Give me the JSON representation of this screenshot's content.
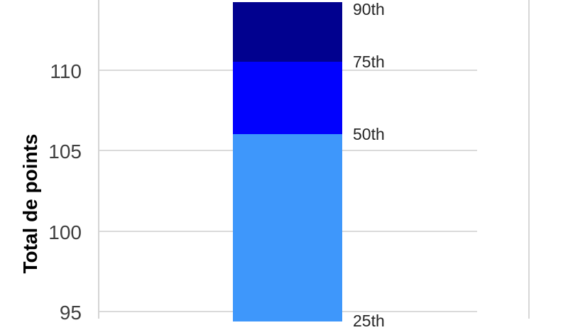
{
  "chart_data": {
    "type": "bar",
    "subtype": "stacked_percentile_column",
    "title": "",
    "xlabel": "",
    "ylabel": "Total de points",
    "yticks": [
      110,
      105,
      100,
      95
    ],
    "ylim_visible": [
      94.7,
      114.4
    ],
    "grid": true,
    "legend_position": "none",
    "percentiles": [
      {
        "label": "90th",
        "value": 114.2
      },
      {
        "label": "75th",
        "value": 110.5
      },
      {
        "label": "50th",
        "value": 106.0
      },
      {
        "label": "25th",
        "value": 94.4
      }
    ],
    "segments": [
      {
        "name": "p75-p90",
        "from": 114.2,
        "to": 110.5,
        "color": "#01018f"
      },
      {
        "name": "p50-p75",
        "from": 110.5,
        "to": 106.0,
        "color": "#0101fe"
      },
      {
        "name": "p25-p50",
        "from": 106.0,
        "to": 94.4,
        "color": "#3e97fb"
      }
    ],
    "colors": {
      "gridline": "#dadada",
      "axis_line": "#d4d4d4",
      "tick_text": "#404040",
      "percentile_text": "#262626",
      "axis_title_text": "#000000"
    }
  }
}
